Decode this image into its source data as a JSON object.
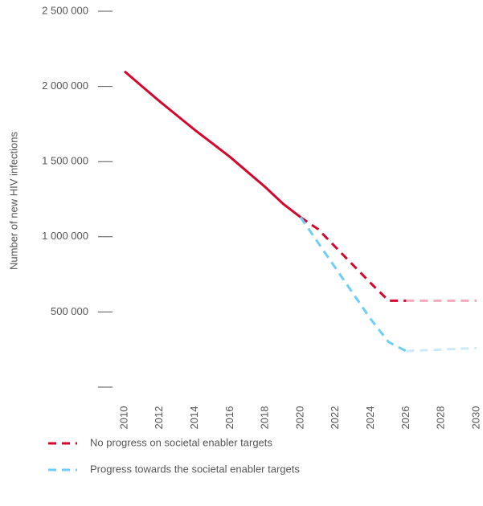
{
  "chart_data": {
    "type": "line",
    "y_label": "Number of new HIV infections",
    "x": [
      2010,
      2011,
      2012,
      2013,
      2014,
      2015,
      2016,
      2017,
      2018,
      2019,
      2020,
      2021,
      2022,
      2023,
      2024,
      2025,
      2026,
      2027,
      2028,
      2029,
      2030
    ],
    "series": [
      {
        "name": "No progress on societal enabler targets",
        "color": "#d4072f",
        "faded_color": "#f2a9bb",
        "values": [
          2100000,
          2000000,
          1900000,
          1805000,
          1710000,
          1620000,
          1530000,
          1430000,
          1330000,
          1220000,
          1130000,
          1050000,
          930000,
          810000,
          690000,
          575000,
          575000,
          575000,
          575000,
          575000,
          575000
        ]
      },
      {
        "name": "Progress towards the societal enabler targets",
        "color": "#6dcff6",
        "faded_color": "#cfe9f8",
        "values": [
          null,
          null,
          null,
          null,
          null,
          null,
          null,
          null,
          null,
          null,
          1130000,
          960000,
          790000,
          620000,
          450000,
          300000,
          240000,
          245000,
          250000,
          255000,
          260000
        ]
      }
    ],
    "dashed_from": 2020,
    "faded_from": 2026,
    "xlim": [
      2010,
      2030
    ],
    "xticks": [
      2010,
      2012,
      2014,
      2016,
      2018,
      2020,
      2022,
      2024,
      2026,
      2028,
      2030
    ],
    "ylim": [
      0,
      2500000
    ],
    "yticks": [
      {
        "value": 500000,
        "label": "500 000"
      },
      {
        "value": 1000000,
        "label": "1 000 000"
      },
      {
        "value": 1500000,
        "label": "1 500 000"
      },
      {
        "value": 2000000,
        "label": "2 000 000"
      },
      {
        "value": 2500000,
        "label": "2 500 000"
      }
    ]
  }
}
